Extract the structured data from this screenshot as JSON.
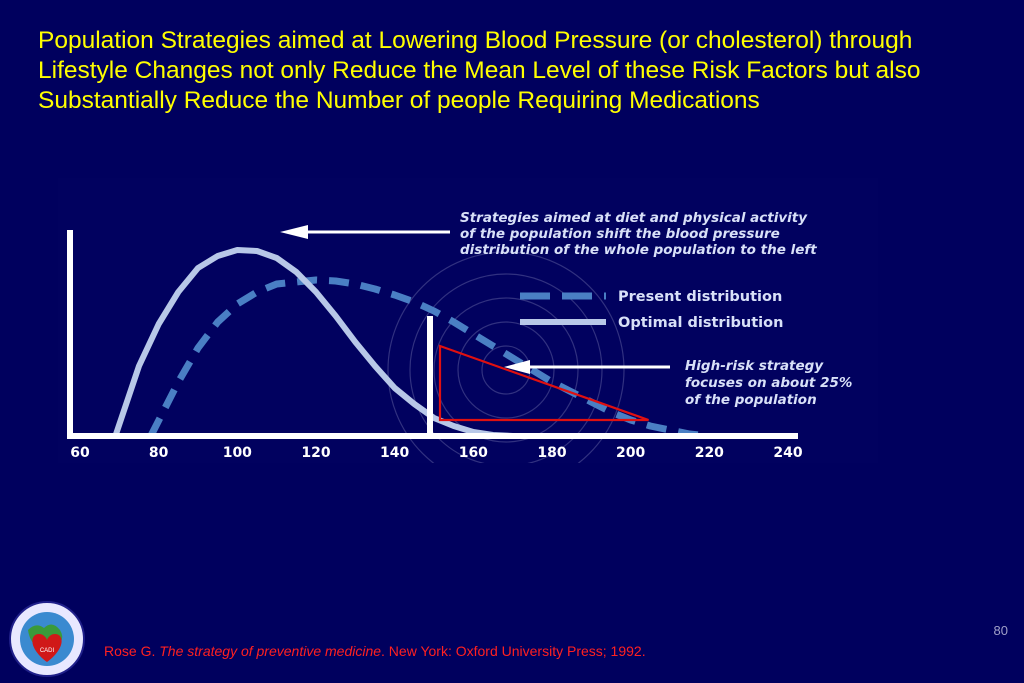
{
  "slide": {
    "title": "Population Strategies aimed at Lowering Blood Pressure (or cholesterol) through Lifestyle Changes not only Reduce the Mean Level of these Risk Factors but also Substantially Reduce the Number of people Requiring Medications",
    "slide_number": "80",
    "citation": {
      "author": "Rose G. ",
      "title": "The strategy of preventive medicine",
      "rest": ". New York: Oxford University Press; 1992."
    }
  },
  "colors": {
    "background": "#00005e",
    "title": "#ffff00",
    "present_series": "#4a7fc4",
    "optimal_series": "#b8c8e8",
    "axis": "#ffffff",
    "high_risk_triangle": "#e01010",
    "citation": "#ff2020"
  },
  "chart_data": {
    "type": "line",
    "title": "",
    "xlabel": "",
    "ylabel": "",
    "xlim": [
      60,
      240
    ],
    "ylim": [
      0,
      1
    ],
    "x_ticks": [
      60,
      80,
      100,
      120,
      140,
      160,
      180,
      200,
      220,
      240
    ],
    "x_tick_labels": [
      "60",
      "80",
      "100",
      "120",
      "140",
      "160",
      "180",
      "200",
      "220",
      "240"
    ],
    "grid": false,
    "legend_position": "right",
    "series": [
      {
        "name": "Present distribution",
        "style": "dashed",
        "x": [
          78,
          85,
          90,
          95,
          100,
          105,
          110,
          115,
          120,
          125,
          130,
          135,
          140,
          145,
          150,
          155,
          160,
          165,
          170,
          175,
          180,
          185,
          190,
          195,
          200,
          205,
          210,
          215,
          220
        ],
        "y": [
          0.0,
          0.27,
          0.44,
          0.57,
          0.66,
          0.72,
          0.76,
          0.77,
          0.78,
          0.775,
          0.76,
          0.735,
          0.705,
          0.67,
          0.625,
          0.57,
          0.51,
          0.45,
          0.39,
          0.33,
          0.27,
          0.22,
          0.17,
          0.12,
          0.08,
          0.05,
          0.03,
          0.01,
          0.0
        ]
      },
      {
        "name": "Optimal distribution",
        "style": "solid",
        "x": [
          69,
          75,
          80,
          85,
          90,
          95,
          100,
          105,
          110,
          115,
          120,
          125,
          130,
          135,
          140,
          145,
          150,
          155,
          160,
          165,
          170
        ],
        "y": [
          0.0,
          0.35,
          0.56,
          0.72,
          0.84,
          0.9,
          0.93,
          0.925,
          0.89,
          0.82,
          0.72,
          0.6,
          0.47,
          0.35,
          0.24,
          0.16,
          0.09,
          0.05,
          0.02,
          0.005,
          0.0
        ]
      }
    ],
    "annotations": [
      {
        "id": "population",
        "text_lines": [
          "Strategies aimed at diet and physical activity",
          "of the population shift the blood pressure",
          "distribution of the whole population to the left"
        ]
      },
      {
        "id": "high_risk",
        "text_lines": [
          "High-risk strategy",
          "focuses on about 25%",
          "of the population"
        ]
      }
    ],
    "cutoff_x": 150,
    "high_risk_region": {
      "x_start": 150,
      "x_end": 202
    }
  }
}
